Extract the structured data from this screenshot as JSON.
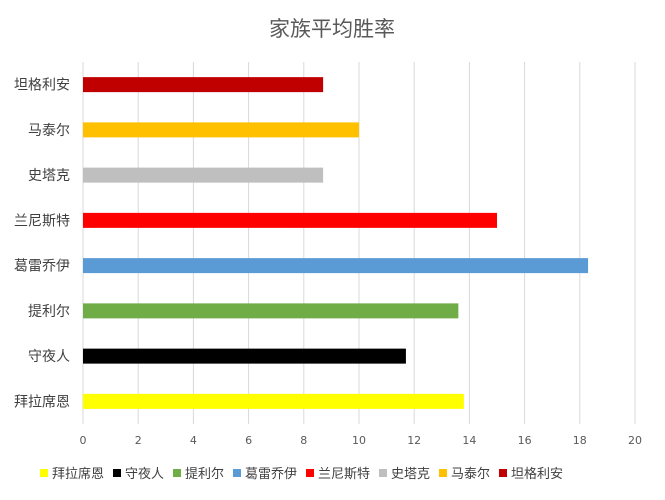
{
  "chart_data": {
    "type": "bar",
    "orientation": "horizontal",
    "title": "家族平均胜率",
    "xlabel": "",
    "ylabel": "",
    "xlim": [
      0,
      20
    ],
    "x_ticks": [
      "0",
      "2",
      "4",
      "6",
      "8",
      "10",
      "12",
      "14",
      "16",
      "18",
      "20"
    ],
    "grid": "vertical",
    "legend_position": "bottom",
    "categories": [
      "拜拉席恩",
      "守夜人",
      "提利尔",
      "葛雷乔伊",
      "兰尼斯特",
      "史塔克",
      "马泰尔",
      "坦格利安"
    ],
    "values": [
      13.8,
      11.7,
      13.6,
      18.3,
      15.0,
      8.7,
      10.0,
      8.7
    ],
    "colors": [
      "#FFFF00",
      "#000000",
      "#70AD47",
      "#5B9BD5",
      "#FF0000",
      "#BFBFBF",
      "#FFC000",
      "#C00000"
    ]
  }
}
